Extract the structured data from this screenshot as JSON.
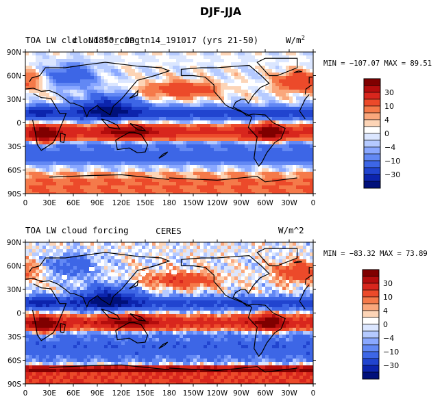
{
  "chart_data": {
    "title": "DJF-JJA",
    "type": "heatmap",
    "colorbar_ticks": [
      "30",
      "10",
      "4",
      "0",
      "−4",
      "−10",
      "−30"
    ],
    "colorbar_colors": [
      "#7f0000",
      "#b40d0d",
      "#d8261d",
      "#ec4a2a",
      "#f57a4a",
      "#faa77c",
      "#fcd4b6",
      "#ffffff",
      "#dbe6ff",
      "#b5caff",
      "#8aa8ff",
      "#6288f4",
      "#3d66e6",
      "#2144cf",
      "#0c24ad",
      "#00107a"
    ],
    "x_tick_labels": [
      "0",
      "30E",
      "60E",
      "90E",
      "120E",
      "150E",
      "180",
      "150W",
      "120W",
      "90W",
      "60W",
      "30W",
      "0"
    ],
    "y_tick_labels": [
      "90N",
      "60N",
      "30N",
      "0",
      "30S",
      "60S",
      "90S"
    ],
    "xlim": [
      0,
      360
    ],
    "ylim": [
      -90,
      90
    ],
    "panels": [
      {
        "left_title": "TOA LW cld",
        "center_title": "N1850_c09_tn14_191017 (yrs 21-50)",
        "overlap_title": "cloud forcing",
        "units_base": "W/m",
        "units_sup": "2",
        "stats": "MIN = −107.07  MAX =  89.51",
        "min": -107.07,
        "max": 89.51
      },
      {
        "left_title": "TOA LW cloud forcing",
        "center_title": "CERES",
        "units_base": "W/m^2",
        "stats": "MIN = −83.32  MAX =  73.89",
        "min": -83.32,
        "max": 73.89
      }
    ]
  }
}
